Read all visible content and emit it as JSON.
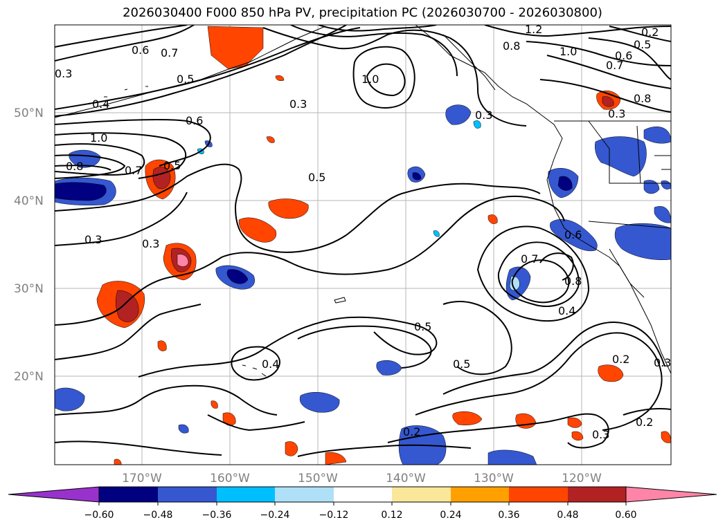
{
  "title": "2026030400 F000 850 hPa PV, precipitation PC (2026030700 - 2026030800)",
  "lat_labels": [
    "50°N",
    "40°N",
    "30°N",
    "20°N"
  ],
  "lon_labels": [
    "170°W",
    "160°W",
    "150°W",
    "140°W",
    "130°W",
    "120°W"
  ],
  "contour_labels": [
    "0.6",
    "0.7",
    "0.5",
    "0.4",
    "1.0",
    "0.8",
    "0.3",
    "0.6",
    "0.7",
    "0.5",
    "0.3",
    "0.3",
    "0.5",
    "1.0",
    "0.3",
    "0.8",
    "1.2",
    "1.0",
    "0.5",
    "0.6",
    "0.7",
    "0.8",
    "0.3",
    "0.7",
    "0.6",
    "0.8",
    "0.4",
    "0.5",
    "0.5",
    "0.2",
    "0.3",
    "0.4",
    "0.2",
    "0.3",
    "0.2",
    "0.3",
    "0.2"
  ],
  "colorbar": {
    "colors": [
      "#9932cc",
      "#000080",
      "#3558d0",
      "#00bfff",
      "#b0e0f8",
      "#ffffff",
      "#fae79a",
      "#ffa000",
      "#ff4500",
      "#b22222",
      "#ff85a8"
    ],
    "ticks": [
      "−0.60",
      "−0.48",
      "−0.36",
      "−0.24",
      "−0.12",
      "0.12",
      "0.24",
      "0.36",
      "0.48",
      "0.60"
    ]
  }
}
